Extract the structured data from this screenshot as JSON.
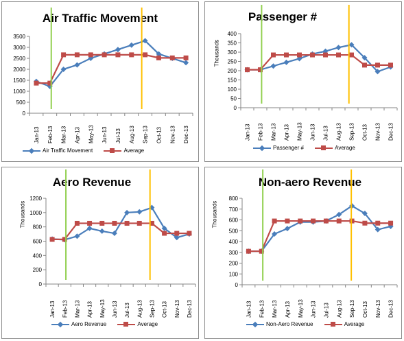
{
  "chart_data": [
    {
      "type": "line",
      "title": "Air Traffic Movement",
      "ylabel": "",
      "categories": [
        "Jan-13",
        "Feb-13",
        "Mar-13",
        "Apr-13",
        "May-13",
        "Jun-13",
        "Jul-13",
        "Aug-13",
        "Sep-13",
        "Oct-13",
        "Nov-13",
        "Dec-13"
      ],
      "yticks": [
        "0",
        "500",
        "1000",
        "1500",
        "2000",
        "2500",
        "3000",
        "3500"
      ],
      "ylim": [
        0,
        3500
      ],
      "series": [
        {
          "name": "Air Traffic Movement",
          "color": "#4a7ebb",
          "marker": "diamond",
          "values": [
            1450,
            1220,
            2000,
            2200,
            2500,
            2700,
            2900,
            3100,
            3300,
            2700,
            2500,
            2300
          ]
        },
        {
          "name": "Average",
          "color": "#be4b48",
          "marker": "square",
          "values": [
            1370,
            1370,
            2660,
            2660,
            2660,
            2660,
            2660,
            2660,
            2660,
            2520,
            2520,
            2520
          ]
        }
      ],
      "vlines": [
        {
          "at": 1.1,
          "color": "#92d050"
        },
        {
          "at": 7.75,
          "color": "#ffc000"
        }
      ]
    },
    {
      "type": "line",
      "title": "Passenger #",
      "ylabel": "Thousands",
      "categories": [
        "Jan-13",
        "Feb-13",
        "Mar-13",
        "Apr-13",
        "May-13",
        "Jun-13",
        "Jul-13",
        "Aug-13",
        "Sep-13",
        "Oct-13",
        "Nov-13",
        "Dec-13"
      ],
      "yticks": [
        "0",
        "50",
        "100",
        "150",
        "200",
        "250",
        "300",
        "350",
        "400"
      ],
      "ylim": [
        0,
        400
      ],
      "series": [
        {
          "name": "Passenger #",
          "color": "#4a7ebb",
          "marker": "diamond",
          "values": [
            205,
            205,
            225,
            245,
            265,
            290,
            305,
            325,
            340,
            270,
            195,
            220
          ]
        },
        {
          "name": "Average",
          "color": "#be4b48",
          "marker": "square",
          "values": [
            205,
            205,
            285,
            285,
            285,
            285,
            285,
            285,
            285,
            230,
            230,
            230
          ]
        }
      ],
      "vlines": [
        {
          "at": 1.1,
          "color": "#92d050"
        },
        {
          "at": 7.8,
          "color": "#ffc000"
        }
      ]
    },
    {
      "type": "line",
      "title": "Aero Revenue",
      "ylabel": "Thousands",
      "categories": [
        "Jan-13",
        "Feb-13",
        "Mar-13",
        "Apr-13",
        "May-13",
        "Jun-13",
        "Jul-13",
        "Aug-13",
        "Sep-13",
        "Oct-13",
        "Nov-13",
        "Dec-13"
      ],
      "yticks": [
        "0",
        "200",
        "400",
        "600",
        "800",
        "1000",
        "1200"
      ],
      "ylim": [
        0,
        1200
      ],
      "series": [
        {
          "name": "Aero Revenue",
          "color": "#4a7ebb",
          "marker": "diamond",
          "values": [
            630,
            620,
            670,
            780,
            740,
            710,
            1000,
            1010,
            1070,
            780,
            650,
            700
          ]
        },
        {
          "name": "Average",
          "color": "#be4b48",
          "marker": "square",
          "values": [
            625,
            625,
            850,
            850,
            850,
            850,
            850,
            850,
            850,
            710,
            710,
            710
          ]
        }
      ],
      "vlines": [
        {
          "at": 1.1,
          "color": "#92d050"
        },
        {
          "at": 7.85,
          "color": "#ffc000"
        }
      ]
    },
    {
      "type": "line",
      "title": "Non-aero Revenue",
      "ylabel": "Thousands",
      "categories": [
        "Jan-13",
        "Feb-13",
        "Mar-13",
        "Apr-13",
        "May-13",
        "Jun-13",
        "Jul-13",
        "Aug-13",
        "Sep-13",
        "Oct-13",
        "Nov-13",
        "Dec-13"
      ],
      "yticks": [
        "0",
        "100",
        "200",
        "300",
        "400",
        "500",
        "600",
        "700",
        "800"
      ],
      "ylim": [
        0,
        800
      ],
      "series": [
        {
          "name": "Non-Aero Revenue",
          "color": "#4a7ebb",
          "marker": "diamond",
          "values": [
            310,
            310,
            470,
            520,
            580,
            580,
            590,
            650,
            730,
            660,
            510,
            540
          ]
        },
        {
          "name": "Average",
          "color": "#be4b48",
          "marker": "square",
          "values": [
            310,
            310,
            590,
            590,
            590,
            590,
            590,
            590,
            590,
            570,
            570,
            570
          ]
        }
      ],
      "vlines": [
        {
          "at": 1.1,
          "color": "#92d050"
        },
        {
          "at": 7.95,
          "color": "#ffc000"
        }
      ]
    }
  ]
}
